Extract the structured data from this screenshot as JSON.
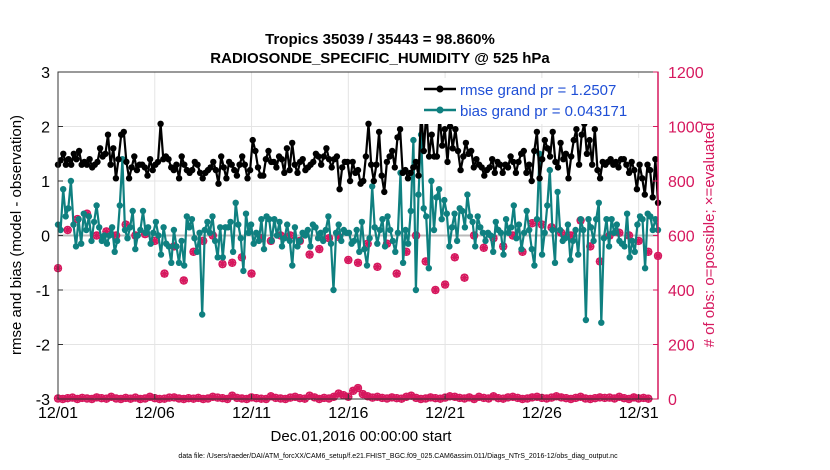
{
  "chart_data": {
    "type": "line",
    "title_line1": "Tropics 35039 / 35443 = 98.860%",
    "title_line2": "RADIOSONDE_SPECIFIC_HUMIDITY @ 525 hPa",
    "xlabel": "Dec.01,2016 00:00:00 start",
    "ylabel_left": "rmse and bias (model - observation)",
    "ylabel_right": "# of obs: o=possible; ×=evaluated",
    "footer": "data file: /Users/raeder/DAI/ATM_forcXX/CAM6_setup/f.e21.FHIST_BGC.f09_025.CAM6assim.011/Diags_NTrS_2016-12/obs_diag_output.nc",
    "x_ticks": [
      {
        "x": 0,
        "label": "12/01"
      },
      {
        "x": 5,
        "label": "12/06"
      },
      {
        "x": 10,
        "label": "12/11"
      },
      {
        "x": 15,
        "label": "12/16"
      },
      {
        "x": 20,
        "label": "12/21"
      },
      {
        "x": 25,
        "label": "12/26"
      },
      {
        "x": 30,
        "label": "12/31"
      }
    ],
    "xlim": [
      0,
      31
    ],
    "ylim_left": [
      -3,
      3
    ],
    "left_ticks": [
      "-3",
      "-2",
      "-1",
      "0",
      "1",
      "2",
      "3"
    ],
    "ylim_right": [
      0,
      1200
    ],
    "right_ticks": [
      "0",
      "200",
      "400",
      "600",
      "800",
      "1000",
      "1200"
    ],
    "colors": {
      "rmse": "#000000",
      "bias": "#0f8080",
      "obs": "#d6185e",
      "legend_text": "#1f4fd6",
      "zero": "#bbbbbb"
    },
    "series": [
      {
        "name": "rmse grand pr = 1.2507",
        "axis": "left",
        "values": [
          1.3,
          1.38,
          1.5,
          1.3,
          1.4,
          1.3,
          1.5,
          1.4,
          1.55,
          1.3,
          1.35,
          1.3,
          1.4,
          1.25,
          1.3,
          1.35,
          1.6,
          1.45,
          1.5,
          1.85,
          1.3,
          1.6,
          1.05,
          1.4,
          1.85,
          1.9,
          1.35,
          1.05,
          1.25,
          1.45,
          1.2,
          1.3,
          1.3,
          1.25,
          1.1,
          1.4,
          1.2,
          1.3,
          1.35,
          2.05,
          1.4,
          1.45,
          1.4,
          1.25,
          1.2,
          1.3,
          1.05,
          1.45,
          1.3,
          1.2,
          1.15,
          1.2,
          1.35,
          1.3,
          1.15,
          1.05,
          1.15,
          1.2,
          1.25,
          1.35,
          1.2,
          0.95,
          1.45,
          1.25,
          1.05,
          1.35,
          1.3,
          1.2,
          1.1,
          1.3,
          1.45,
          1.3,
          1.05,
          1.2,
          1.75,
          1.55,
          1.25,
          1.1,
          1.1,
          1.4,
          1.55,
          1.35,
          1.35,
          1.25,
          1.45,
          1.4,
          1.15,
          1.6,
          1.2,
          1.7,
          1.3,
          1.15,
          1.35,
          1.4,
          1.2,
          1.25,
          1.3,
          1.35,
          1.5,
          1.45,
          1.3,
          1.45,
          1.6,
          1.4,
          1.25,
          1.4,
          1.45,
          0.85,
          1.25,
          1.35,
          1.35,
          1.0,
          1.35,
          1.15,
          1.2,
          0.95,
          1.0,
          1.45,
          2.05,
          1.3,
          1.0,
          1.3,
          1.9,
          1.1,
          0.8,
          1.35,
          1.45,
          1.55,
          1.25,
          1.8,
          1.95,
          1.15,
          1.2,
          1.05,
          1.15,
          1.25,
          1.35,
          1.1,
          2.3,
          1.55,
          2.3,
          1.45,
          1.85,
          1.45,
          1.45,
          2.2,
          1.65,
          1.95,
          1.35,
          2.0,
          1.6,
          1.95,
          1.55,
          1.2,
          1.45,
          1.7,
          1.5,
          1.55,
          1.25,
          1.4,
          1.3,
          1.25,
          1.1,
          1.2,
          1.25,
          1.4,
          1.15,
          1.35,
          1.3,
          1.15,
          1.3,
          1.25,
          1.45,
          1.35,
          1.15,
          1.35,
          1.5,
          1.55,
          1.15,
          1.3,
          1.0,
          1.55,
          1.9,
          1.05,
          1.4,
          1.75,
          1.6,
          1.45,
          1.9,
          1.35,
          1.25,
          1.7,
          1.4,
          1.5,
          1.05,
          1.45,
          1.75,
          1.95,
          1.3,
          1.85,
          2.05,
          1.5,
          1.75,
          1.3,
          1.95,
          1.2,
          1.05,
          1.35,
          1.3,
          1.35,
          1.4,
          1.3,
          1.35,
          1.25,
          1.4,
          1.4,
          1.3,
          1.15,
          1.35,
          1.2,
          0.85,
          1.3,
          1.05,
          0.75,
          1.3,
          1.2,
          0.7,
          1.4,
          0.6
        ]
      },
      {
        "name": "bias grand pr = 0.043171",
        "axis": "left",
        "values": [
          0.2,
          0.1,
          0.85,
          0.35,
          0.5,
          1.0,
          0.2,
          -0.2,
          0.3,
          -0.15,
          0.4,
          0.1,
          0.35,
          -0.1,
          0.25,
          0.55,
          0.15,
          -0.1,
          0.0,
          -0.15,
          0.0,
          0.15,
          -0.3,
          -0.1,
          0.55,
          1.4,
          0.1,
          -0.05,
          0.15,
          0.45,
          -0.25,
          0.0,
          0.1,
          0.45,
          0.05,
          0.15,
          -0.15,
          0.05,
          0.25,
          0.0,
          -0.35,
          0.15,
          -0.15,
          -0.2,
          -0.5,
          0.1,
          -0.2,
          -0.5,
          -0.1,
          -0.55,
          0.35,
          0.15,
          0.3,
          -0.05,
          -0.3,
          0.05,
          -1.45,
          0.1,
          0.25,
          0.05,
          0.35,
          -0.1,
          -0.4,
          0.15,
          -0.4,
          0.15,
          0.15,
          0.25,
          -0.3,
          0.6,
          0.2,
          -0.05,
          -0.65,
          0.4,
          0.05,
          0.2,
          -0.15,
          0.05,
          -0.1,
          0.3,
          -0.25,
          0.35,
          0.3,
          -0.1,
          0.3,
          0.0,
          0.25,
          -0.2,
          -0.05,
          0.2,
          -0.1,
          -0.55,
          0.15,
          -0.2,
          -0.1,
          0.05,
          0.0,
          0.1,
          -0.2,
          0.2,
          0.15,
          -0.05,
          0.05,
          -0.1,
          0.1,
          0.35,
          -0.15,
          -1.0,
          0.05,
          0.2,
          -0.1,
          0.1,
          0.05,
          0.05,
          -0.15,
          -0.1,
          0.1,
          -0.3,
          0.25,
          -0.25,
          -0.55,
          -0.05,
          0.9,
          0.15,
          -0.15,
          0.1,
          0.3,
          -0.2,
          0.35,
          0.1,
          -0.1,
          -0.3,
          0.05,
          1.15,
          -0.5,
          0.1,
          -0.15,
          0.45,
          1.75,
          -1.0,
          0.75,
          1.85,
          0.5,
          0.35,
          -0.6,
          1.0,
          0.1,
          0.7,
          0.85,
          0.3,
          0.65,
          0.4,
          -0.2,
          0.15,
          0.4,
          -0.1,
          0.5,
          0.45,
          0.15,
          0.75,
          0.35,
          0.25,
          -0.2,
          0.35,
          0.15,
          0.05,
          -0.1,
          0.05,
          0.0,
          -0.3,
          0.25,
          0.1,
          0.05,
          -0.35,
          0.3,
          0.05,
          0.15,
          0.55,
          -0.05,
          0.2,
          -0.25,
          0.05,
          0.45,
          0.1,
          -0.25,
          -0.55,
          0.3,
          1.5,
          -0.35,
          0.05,
          0.55,
          1.2,
          0.1,
          -0.5,
          0.8,
          0.1,
          -0.1,
          -0.05,
          0.2,
          -0.45,
          -0.1,
          0.1,
          -0.35,
          0.3,
          0.1,
          -1.55,
          0.3,
          0.15,
          -0.1,
          0.3,
          0.6,
          -1.6,
          -0.05,
          0.3,
          -0.2,
          0.3,
          0.05,
          0.2,
          -0.1,
          -0.15,
          -0.2,
          0.4,
          -0.4,
          -0.1,
          -0.3,
          0.2,
          0.35,
          0.3,
          -0.6,
          0.4,
          0.35,
          0.1,
          0.3,
          0.1
        ]
      },
      {
        "name": "obs evaluated",
        "axis": "right",
        "points_per_day": 2,
        "values": [
          480,
          620,
          660,
          680,
          600,
          615,
          600,
          640,
          600,
          605,
          580,
          460,
          560,
          435,
          540,
          580,
          600,
          495,
          500,
          520,
          460,
          590,
          580,
          600,
          600,
          580,
          530,
          550,
          590,
          595,
          510,
          500,
          570,
          485,
          570,
          460,
          540,
          600,
          505,
          400,
          420,
          520,
          445,
          600,
          555,
          590,
          560,
          600,
          540,
          645,
          640,
          630,
          610,
          600,
          655,
          560,
          505,
          600,
          610,
          600,
          580,
          540,
          525,
          650,
          560,
          600,
          600
        ]
      },
      {
        "name": "obs near zero",
        "axis": "right",
        "points_per_day": 4,
        "values": [
          2,
          0,
          3,
          5,
          0,
          4,
          2,
          0,
          6,
          3,
          1,
          8,
          2,
          0,
          4,
          1,
          5,
          0,
          2,
          8,
          3,
          0,
          1,
          5,
          6,
          2,
          0,
          3,
          1,
          4,
          0,
          2,
          8,
          5,
          3,
          0,
          12,
          4,
          2,
          0,
          6,
          3,
          1,
          0,
          10,
          4,
          2,
          0,
          5,
          8,
          3,
          1,
          12,
          6,
          0,
          4,
          2,
          8,
          20,
          14,
          8,
          30,
          40,
          18,
          10,
          5,
          8,
          4,
          2,
          6,
          3,
          1,
          8,
          12,
          4,
          0,
          2,
          6,
          3,
          1,
          5,
          10,
          8,
          4,
          2,
          6,
          0,
          8,
          4,
          2,
          10,
          3,
          1,
          6,
          8,
          4,
          0,
          2,
          6,
          8,
          4,
          2,
          5,
          10,
          6,
          3,
          0,
          4,
          8,
          2,
          0,
          3,
          6,
          4,
          5,
          2,
          8,
          3,
          0,
          6,
          2,
          4,
          1
        ]
      }
    ]
  }
}
